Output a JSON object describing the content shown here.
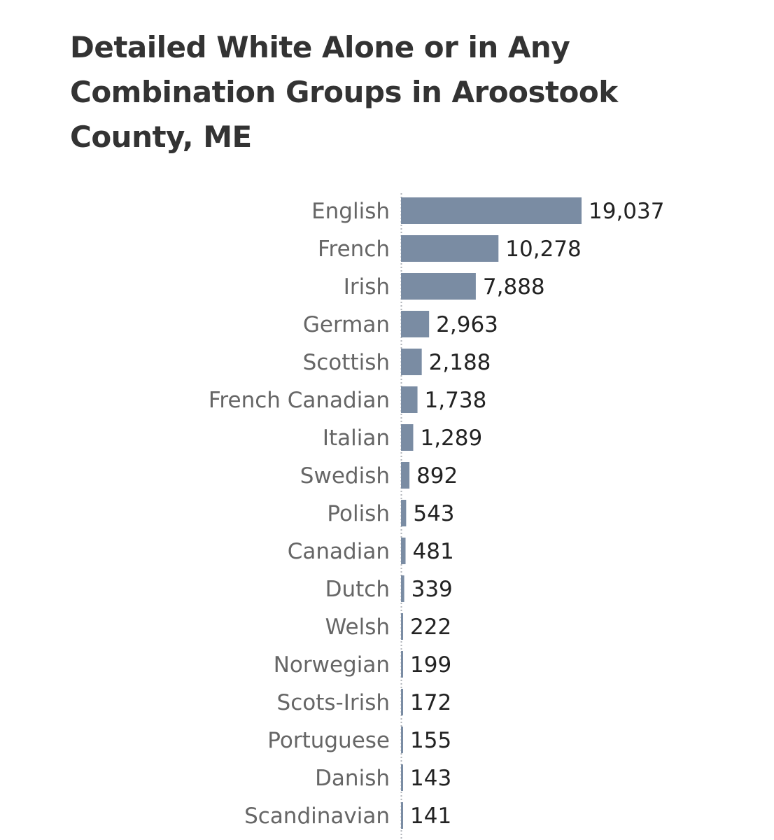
{
  "chart_data": {
    "type": "bar",
    "orientation": "horizontal",
    "title": "Detailed White Alone or in Any Combination Groups in Aroostook County, ME",
    "categories": [
      "English",
      "French",
      "Irish",
      "German",
      "Scottish",
      "French Canadian",
      "Italian",
      "Swedish",
      "Polish",
      "Canadian",
      "Dutch",
      "Welsh",
      "Norwegian",
      "Scots-Irish",
      "Portuguese",
      "Danish",
      "Scandinavian"
    ],
    "values": [
      19037,
      10278,
      7888,
      2963,
      2188,
      1738,
      1289,
      892,
      543,
      481,
      339,
      222,
      199,
      172,
      155,
      143,
      141
    ],
    "value_labels": [
      "19,037",
      "10,278",
      "7,888",
      "2,963",
      "2,188",
      "1,738",
      "1,289",
      "892",
      "543",
      "481",
      "339",
      "222",
      "199",
      "172",
      "155",
      "143",
      "141"
    ],
    "xlim": [
      0,
      19037
    ],
    "grid": false,
    "bar_color": "#7a8ca3"
  }
}
